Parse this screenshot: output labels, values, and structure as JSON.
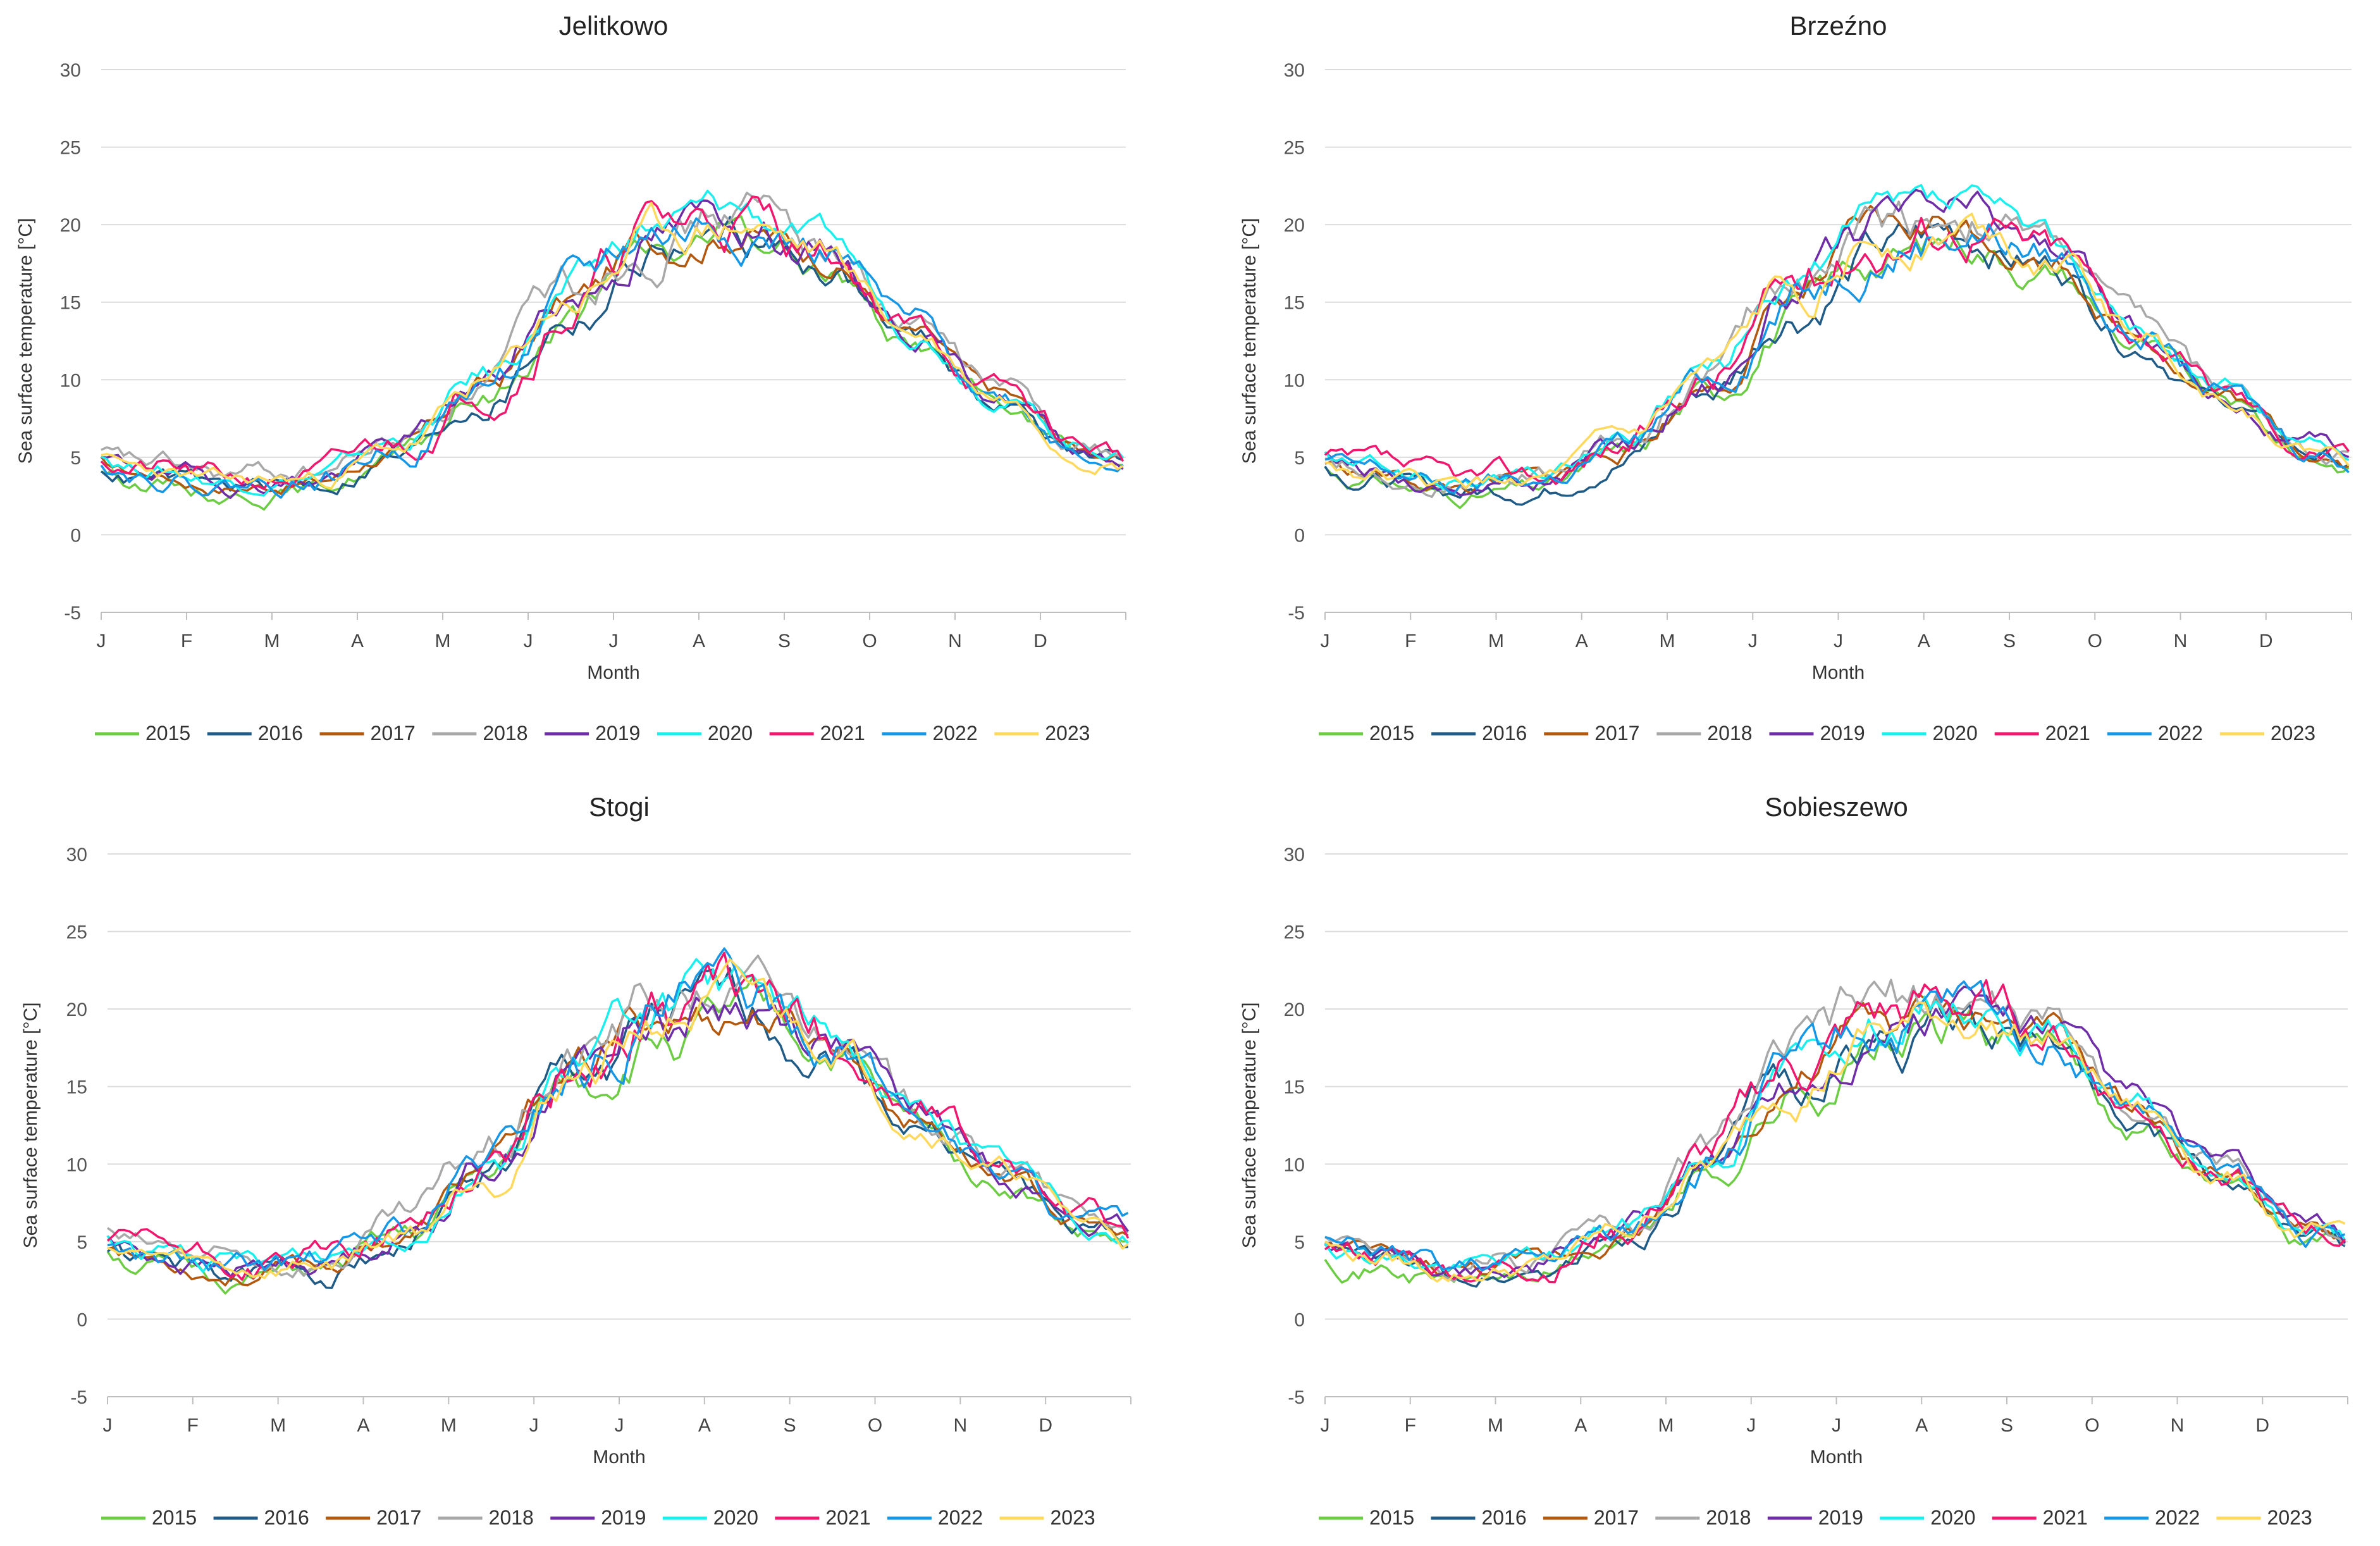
{
  "colors": {
    "2015": "#6ccc44",
    "2016": "#1f5b86",
    "2017": "#b3580f",
    "2018": "#a8a8a8",
    "2019": "#6f2da8",
    "2020": "#19f0ee",
    "2021": "#f2176e",
    "2022": "#1597e6",
    "2023": "#fed95c"
  },
  "chart_data": [
    {
      "type": "line",
      "title": "Jelitkowo",
      "xlabel": "Month",
      "ylabel": "Sea surface temperature  [°C]",
      "x_ticks": [
        "J",
        "F",
        "M",
        "A",
        "M",
        "J",
        "J",
        "A",
        "S",
        "O",
        "N",
        "D"
      ],
      "y_ticks": [
        -5,
        0,
        5,
        10,
        15,
        20,
        25,
        30
      ],
      "ylim": [
        -5,
        30
      ],
      "grid": true,
      "legend": "bottom",
      "series_names": [
        "2015",
        "2016",
        "2017",
        "2018",
        "2019",
        "2020",
        "2021",
        "2022",
        "2023"
      ],
      "climatology_month_mean": [
        4.0,
        3.2,
        3.5,
        5.5,
        9.5,
        15.0,
        19.0,
        20.0,
        18.0,
        13.0,
        9.0,
        5.5
      ],
      "series": [
        {
          "name": "2015",
          "offset": -0.8,
          "noise": 0.8,
          "seed": 15
        },
        {
          "name": "2016",
          "offset": -0.5,
          "noise": 0.9,
          "seed": 16
        },
        {
          "name": "2017",
          "offset": 0.0,
          "noise": 0.7,
          "seed": 17
        },
        {
          "name": "2018",
          "offset": 0.8,
          "noise": 1.0,
          "seed": 18
        },
        {
          "name": "2019",
          "offset": 0.3,
          "noise": 0.9,
          "seed": 19
        },
        {
          "name": "2020",
          "offset": 0.6,
          "noise": 0.8,
          "seed": 20
        },
        {
          "name": "2021",
          "offset": 0.4,
          "noise": 1.1,
          "seed": 21
        },
        {
          "name": "2022",
          "offset": 0.2,
          "noise": 1.0,
          "seed": 22
        },
        {
          "name": "2023",
          "offset": 0.1,
          "noise": 0.8,
          "seed": 23
        }
      ]
    },
    {
      "type": "line",
      "title": "Brzeźno",
      "xlabel": "Month",
      "ylabel": "Sea surface temperature  [°C]",
      "x_ticks": [
        "J",
        "F",
        "M",
        "A",
        "M",
        "J",
        "J",
        "A",
        "S",
        "O",
        "N",
        "D"
      ],
      "y_ticks": [
        -5,
        0,
        5,
        10,
        15,
        20,
        25,
        30
      ],
      "ylim": [
        -5,
        30
      ],
      "grid": true,
      "legend": "bottom",
      "series_names": [
        "2015",
        "2016",
        "2017",
        "2018",
        "2019",
        "2020",
        "2021",
        "2022",
        "2023"
      ],
      "climatology_month_mean": [
        4.0,
        3.0,
        3.4,
        5.6,
        9.8,
        15.5,
        19.0,
        20.0,
        18.0,
        13.0,
        9.0,
        5.5
      ],
      "series": [
        {
          "name": "2015",
          "offset": -0.8,
          "noise": 0.8,
          "seed": 31
        },
        {
          "name": "2016",
          "offset": -0.5,
          "noise": 0.9,
          "seed": 32
        },
        {
          "name": "2017",
          "offset": 0.0,
          "noise": 0.8,
          "seed": 33
        },
        {
          "name": "2018",
          "offset": 0.8,
          "noise": 1.0,
          "seed": 34
        },
        {
          "name": "2019",
          "offset": 0.3,
          "noise": 0.9,
          "seed": 35
        },
        {
          "name": "2020",
          "offset": 0.6,
          "noise": 0.8,
          "seed": 36
        },
        {
          "name": "2021",
          "offset": 0.4,
          "noise": 1.1,
          "seed": 37
        },
        {
          "name": "2022",
          "offset": 0.2,
          "noise": 1.0,
          "seed": 38
        },
        {
          "name": "2023",
          "offset": 0.1,
          "noise": 0.8,
          "seed": 39
        }
      ]
    },
    {
      "type": "line",
      "title": "Stogi",
      "xlabel": "Month",
      "ylabel": "Sea surface temperature  [°C]",
      "x_ticks": [
        "J",
        "F",
        "M",
        "A",
        "M",
        "J",
        "J",
        "A",
        "S",
        "O",
        "N",
        "D"
      ],
      "y_ticks": [
        -5,
        0,
        5,
        10,
        15,
        20,
        25,
        30
      ],
      "ylim": [
        -5,
        30
      ],
      "grid": true,
      "legend": "bottom",
      "series_names": [
        "2015",
        "2016",
        "2017",
        "2018",
        "2019",
        "2020",
        "2021",
        "2022",
        "2023"
      ],
      "climatology_month_mean": [
        4.0,
        3.0,
        3.5,
        5.5,
        10.0,
        16.0,
        19.5,
        20.0,
        18.0,
        13.0,
        9.5,
        6.0
      ],
      "series": [
        {
          "name": "2015",
          "offset": -0.8,
          "noise": 1.0,
          "seed": 51
        },
        {
          "name": "2016",
          "offset": -0.5,
          "noise": 1.1,
          "seed": 52
        },
        {
          "name": "2017",
          "offset": 0.0,
          "noise": 0.9,
          "seed": 53
        },
        {
          "name": "2018",
          "offset": 0.8,
          "noise": 1.2,
          "seed": 54
        },
        {
          "name": "2019",
          "offset": 0.3,
          "noise": 1.1,
          "seed": 55
        },
        {
          "name": "2020",
          "offset": 0.6,
          "noise": 1.0,
          "seed": 56
        },
        {
          "name": "2021",
          "offset": 0.4,
          "noise": 1.3,
          "seed": 57
        },
        {
          "name": "2022",
          "offset": 0.2,
          "noise": 1.2,
          "seed": 58
        },
        {
          "name": "2023",
          "offset": 0.1,
          "noise": 1.0,
          "seed": 59
        }
      ]
    },
    {
      "type": "line",
      "title": "Sobieszewo",
      "xlabel": "Month",
      "ylabel": "Sea surface temperature  [°C]",
      "x_ticks": [
        "J",
        "F",
        "M",
        "A",
        "M",
        "J",
        "J",
        "A",
        "S",
        "O",
        "N",
        "D"
      ],
      "y_ticks": [
        -5,
        0,
        5,
        10,
        15,
        20,
        25,
        30
      ],
      "ylim": [
        -5,
        30
      ],
      "grid": true,
      "legend": "bottom",
      "series_names": [
        "2015",
        "2016",
        "2017",
        "2018",
        "2019",
        "2020",
        "2021",
        "2022",
        "2023"
      ],
      "climatology_month_mean": [
        4.0,
        3.0,
        3.4,
        5.5,
        10.0,
        15.5,
        18.5,
        19.5,
        18.0,
        13.5,
        9.5,
        5.5
      ],
      "series": [
        {
          "name": "2015",
          "offset": -0.8,
          "noise": 1.0,
          "seed": 71
        },
        {
          "name": "2016",
          "offset": -0.5,
          "noise": 1.0,
          "seed": 72
        },
        {
          "name": "2017",
          "offset": 0.0,
          "noise": 0.9,
          "seed": 73
        },
        {
          "name": "2018",
          "offset": 0.8,
          "noise": 1.1,
          "seed": 74
        },
        {
          "name": "2019",
          "offset": 0.3,
          "noise": 1.0,
          "seed": 75
        },
        {
          "name": "2020",
          "offset": 0.6,
          "noise": 0.9,
          "seed": 76
        },
        {
          "name": "2021",
          "offset": 0.4,
          "noise": 1.2,
          "seed": 77
        },
        {
          "name": "2022",
          "offset": 0.2,
          "noise": 1.1,
          "seed": 78
        },
        {
          "name": "2023",
          "offset": 0.1,
          "noise": 0.9,
          "seed": 79
        }
      ]
    }
  ]
}
